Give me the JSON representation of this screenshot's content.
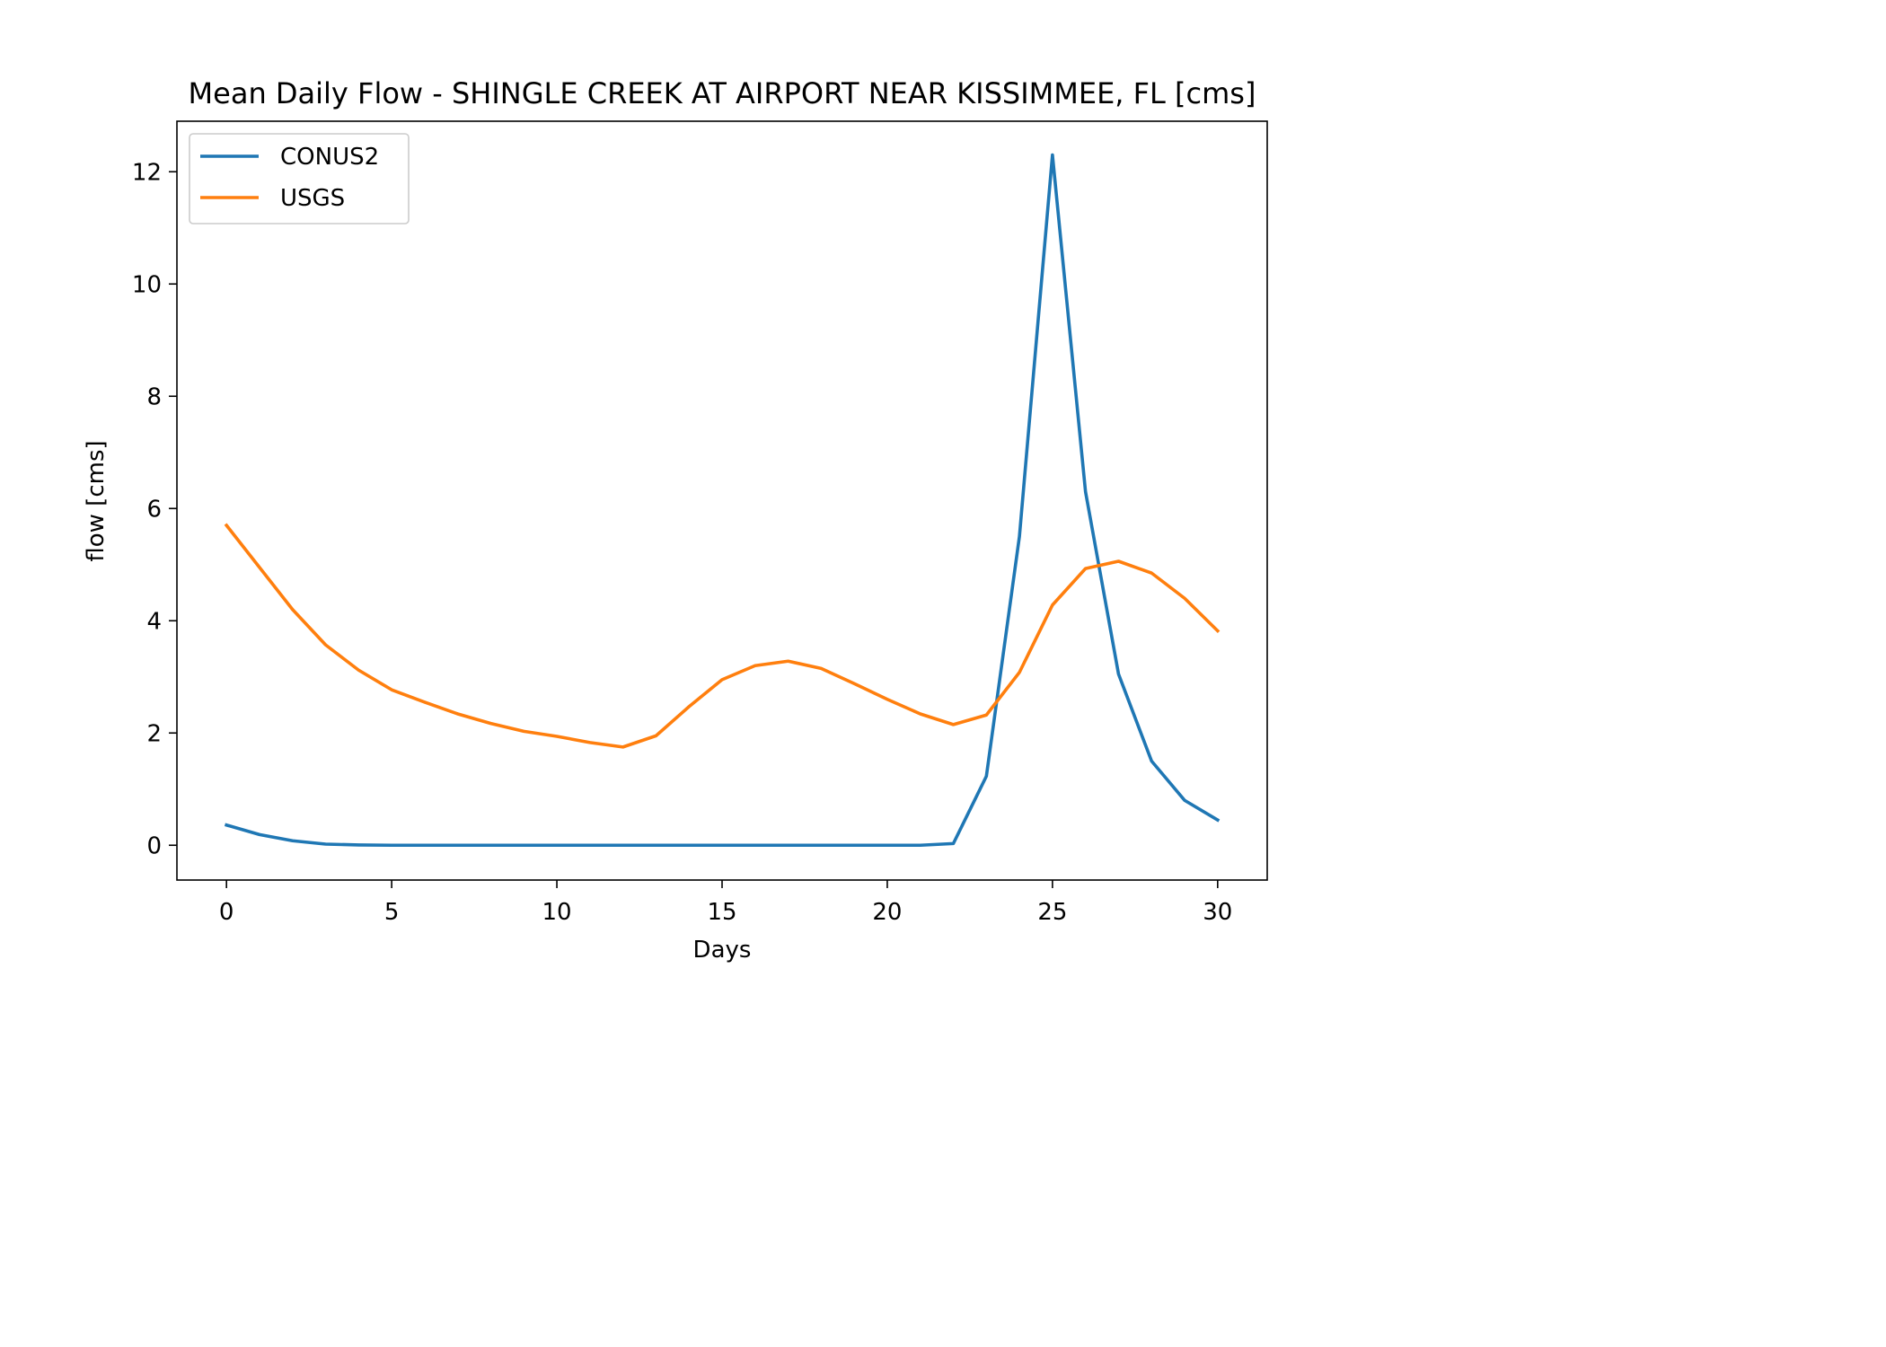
{
  "chart_data": {
    "type": "line",
    "title": "Mean Daily Flow - SHINGLE CREEK AT AIRPORT NEAR KISSIMMEE, FL [cms]",
    "xlabel": "Days",
    "ylabel": "flow [cms]",
    "xlim": [
      -1.5,
      31.5
    ],
    "ylim": [
      -0.62,
      12.9
    ],
    "xticks": [
      0,
      5,
      10,
      15,
      20,
      25,
      30
    ],
    "yticks": [
      0,
      2,
      4,
      6,
      8,
      10,
      12
    ],
    "grid": false,
    "legend_position": "upper-left",
    "x": [
      0,
      1,
      2,
      3,
      4,
      5,
      6,
      7,
      8,
      9,
      10,
      11,
      12,
      13,
      14,
      15,
      16,
      17,
      18,
      19,
      20,
      21,
      22,
      23,
      24,
      25,
      26,
      27,
      28,
      29,
      30
    ],
    "series": [
      {
        "name": "CONUS2",
        "color": "#1f77b4",
        "values": [
          0.36,
          0.19,
          0.08,
          0.02,
          0.005,
          0.0,
          0.0,
          0.0,
          0.0,
          0.0,
          0.0,
          0.0,
          0.0,
          0.0,
          0.0,
          0.0,
          0.0,
          0.0,
          0.0,
          0.0,
          0.0,
          0.0,
          0.03,
          1.23,
          5.5,
          12.3,
          6.3,
          3.05,
          1.5,
          0.8,
          0.45
        ]
      },
      {
        "name": "USGS",
        "color": "#ff7f0e",
        "values": [
          5.7,
          4.95,
          4.2,
          3.57,
          3.12,
          2.77,
          2.55,
          2.34,
          2.17,
          2.03,
          1.94,
          1.83,
          1.75,
          1.95,
          2.47,
          2.95,
          3.2,
          3.28,
          3.15,
          2.88,
          2.6,
          2.34,
          2.15,
          2.32,
          3.08,
          4.28,
          4.93,
          5.06,
          4.85,
          4.4,
          3.82
        ]
      }
    ]
  }
}
